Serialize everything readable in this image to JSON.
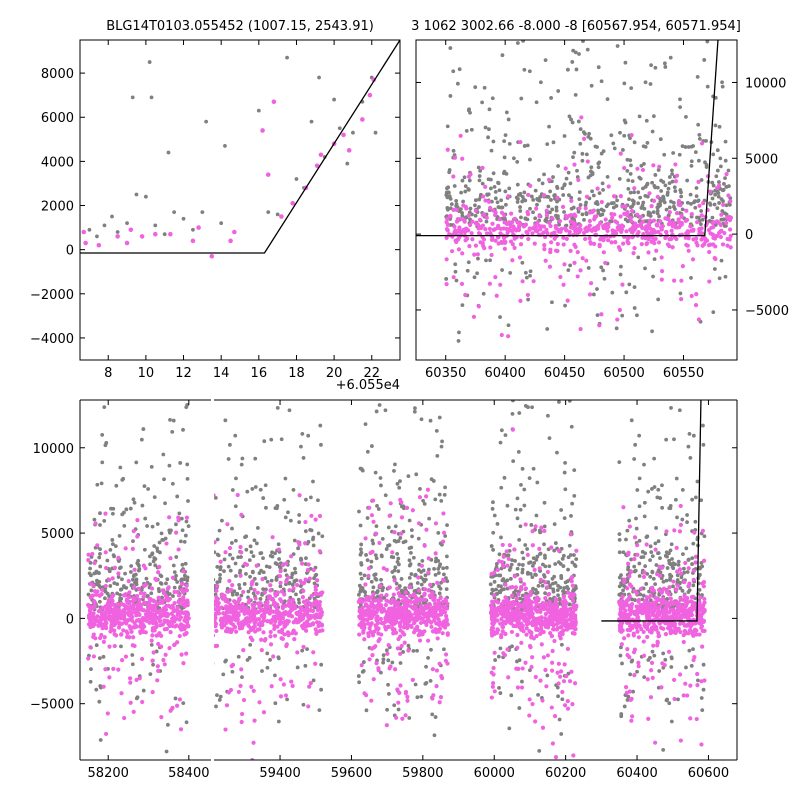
{
  "chart_data": [
    {
      "type": "scatter",
      "title": "BLG14T0103.055452 (1007.15, 2543.91)",
      "x_offset_label": "+6.055e4",
      "xlim": [
        6.5,
        23.5
      ],
      "ylim": [
        -5000,
        9500
      ],
      "xticks": [
        8,
        10,
        12,
        14,
        16,
        18,
        20,
        22
      ],
      "yticks": [
        -4000,
        -2000,
        0,
        2000,
        4000,
        6000,
        8000
      ],
      "ytick_labels": [
        "−4000",
        "−2000",
        "0",
        "2000",
        "4000",
        "6000",
        "8000"
      ],
      "model_line": {
        "x": [
          6.5,
          16.3,
          23.5
        ],
        "y": [
          -150,
          -150,
          9500
        ]
      },
      "series": [
        {
          "color": "#808080",
          "points": [
            [
              7,
              900
            ],
            [
              7.4,
              600
            ],
            [
              7.8,
              1100
            ],
            [
              8.2,
              1500
            ],
            [
              8.5,
              800
            ],
            [
              9,
              1200
            ],
            [
              9.3,
              6900
            ],
            [
              9.5,
              2500
            ],
            [
              10,
              2400
            ],
            [
              10.2,
              8500
            ],
            [
              10.3,
              6900
            ],
            [
              10.5,
              1100
            ],
            [
              11,
              700
            ],
            [
              11.2,
              4400
            ],
            [
              11.5,
              1700
            ],
            [
              12,
              1400
            ],
            [
              12.5,
              900
            ],
            [
              13,
              1700
            ],
            [
              13.2,
              5800
            ],
            [
              14,
              1200
            ],
            [
              14.2,
              4700
            ],
            [
              16,
              6300
            ],
            [
              16.5,
              1700
            ],
            [
              17,
              1600
            ],
            [
              17.5,
              8700
            ],
            [
              18,
              3200
            ],
            [
              18.4,
              2800
            ],
            [
              18.8,
              5800
            ],
            [
              19.2,
              7800
            ],
            [
              19.5,
              4200
            ],
            [
              20,
              6800
            ],
            [
              20.3,
              5500
            ],
            [
              20.7,
              3900
            ],
            [
              21,
              5300
            ],
            [
              21.5,
              6700
            ],
            [
              22,
              7800
            ],
            [
              22.2,
              5300
            ]
          ]
        },
        {
          "color": "#f062e0",
          "points": [
            [
              6.7,
              800
            ],
            [
              6.8,
              300
            ],
            [
              7.5,
              200
            ],
            [
              8.5,
              600
            ],
            [
              9,
              300
            ],
            [
              9.2,
              900
            ],
            [
              9.8,
              600
            ],
            [
              10.5,
              700
            ],
            [
              11.3,
              700
            ],
            [
              12.5,
              400
            ],
            [
              12.8,
              1000
            ],
            [
              13.5,
              -300
            ],
            [
              14.5,
              400
            ],
            [
              14.7,
              800
            ],
            [
              16.2,
              5400
            ],
            [
              16.5,
              3400
            ],
            [
              16.8,
              6700
            ],
            [
              17.2,
              1500
            ],
            [
              17.8,
              2100
            ],
            [
              18.5,
              2800
            ],
            [
              19.1,
              3800
            ],
            [
              19.3,
              4300
            ],
            [
              20,
              4800
            ],
            [
              20.5,
              5200
            ],
            [
              20.8,
              4500
            ],
            [
              21.5,
              5900
            ],
            [
              21.9,
              7000
            ],
            [
              22.1,
              7700
            ]
          ]
        }
      ]
    },
    {
      "type": "scatter",
      "title": "3 1062 3002.66 -8.000 -8 [60567.954, 60571.954]",
      "xlim": [
        60325,
        60595
      ],
      "ylim": [
        -8300,
        12800
      ],
      "xticks": [
        60350,
        60400,
        60450,
        60500,
        60550
      ],
      "yticks": [
        -5000,
        0,
        5000,
        10000
      ],
      "ytick_labels": [
        "−5000",
        "0",
        "5000",
        "10000"
      ],
      "model_line": {
        "x": [
          60325,
          60567.9,
          60579
        ],
        "y": [
          -100,
          -100,
          12800
        ]
      },
      "gray_cluster": {
        "x_range": [
          60350,
          60590
        ],
        "core_y": [
          -500,
          3000
        ],
        "scatter_y": [
          -8000,
          12500
        ]
      },
      "magenta_cluster": {
        "x_range": [
          60350,
          60590
        ],
        "core_y": [
          -800,
          1200
        ],
        "scatter_y": [
          -7800,
          11500
        ]
      }
    },
    {
      "type": "scatter",
      "xlim": [
        58130,
        60680
      ],
      "ylim": [
        -8300,
        12800
      ],
      "xticks": [
        58200,
        58400,
        59400,
        59600,
        59800,
        60000,
        60200,
        60400,
        60600
      ],
      "yticks": [
        -5000,
        0,
        5000,
        10000
      ],
      "ytick_labels": [
        "−5000",
        "0",
        "5000",
        "10000"
      ],
      "model_line": {
        "x": [
          60300,
          60567.9,
          60579
        ],
        "y": [
          -150,
          -150,
          12800
        ]
      },
      "seasons": [
        {
          "x_range": [
            58150,
            58400
          ]
        },
        {
          "x_range": [
            59200,
            59520
          ]
        },
        {
          "x_range": [
            59620,
            59870
          ]
        },
        {
          "x_range": [
            59990,
            60230
          ]
        },
        {
          "x_range": [
            60350,
            60590
          ]
        }
      ]
    }
  ]
}
